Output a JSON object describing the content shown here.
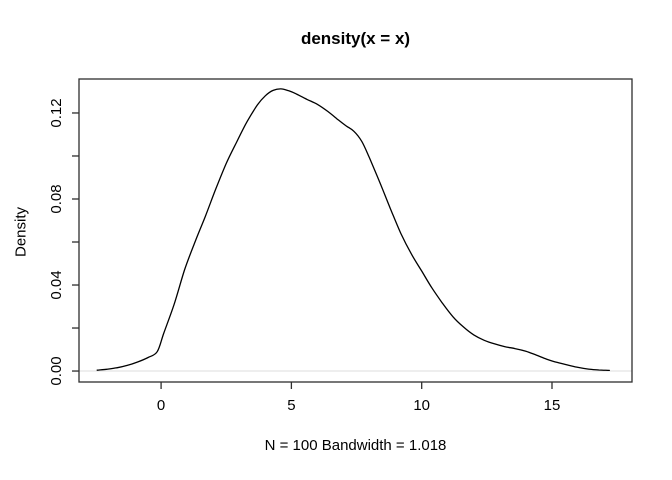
{
  "title": "density(x = x)",
  "chart_data": {
    "type": "line",
    "title": "density(x = x)",
    "xlabel": "N = 100   Bandwidth = 1.018",
    "ylabel": "Density",
    "n": 100,
    "bandwidth": 1.018,
    "xlim": [
      -3.15,
      18.07
    ],
    "ylim": [
      -0.0051,
      0.1358
    ],
    "grid": false,
    "legend": false,
    "x_ticks": {
      "values": [
        0,
        5,
        10,
        15
      ],
      "labels": [
        "0",
        "5",
        "10",
        "15"
      ]
    },
    "y_ticks": {
      "values": [
        0.0,
        0.02,
        0.04,
        0.06,
        0.08,
        0.1,
        0.12
      ],
      "labels": [
        "0.00",
        "",
        "0.04",
        "",
        "0.08",
        "",
        "0.12"
      ]
    },
    "zero_line": {
      "value": 0,
      "color": "#e8e8e8"
    },
    "series": [
      {
        "name": "density",
        "color": "#000000",
        "points": [
          [
            -2.45,
            0.0004
          ],
          [
            -2.1,
            0.0008
          ],
          [
            -1.7,
            0.0015
          ],
          [
            -1.3,
            0.0026
          ],
          [
            -0.9,
            0.0042
          ],
          [
            -0.5,
            0.0063
          ],
          [
            -0.15,
            0.009
          ],
          [
            0.1,
            0.0175
          ],
          [
            0.5,
            0.031
          ],
          [
            0.9,
            0.047
          ],
          [
            1.3,
            0.06
          ],
          [
            1.7,
            0.072
          ],
          [
            2.1,
            0.0847
          ],
          [
            2.5,
            0.0965
          ],
          [
            2.9,
            0.1065
          ],
          [
            3.3,
            0.116
          ],
          [
            3.7,
            0.1238
          ],
          [
            4.0,
            0.128
          ],
          [
            4.3,
            0.1305
          ],
          [
            4.6,
            0.1312
          ],
          [
            4.9,
            0.1303
          ],
          [
            5.2,
            0.1288
          ],
          [
            5.6,
            0.1263
          ],
          [
            6.0,
            0.124
          ],
          [
            6.4,
            0.1207
          ],
          [
            6.8,
            0.1168
          ],
          [
            7.1,
            0.114
          ],
          [
            7.4,
            0.1115
          ],
          [
            7.7,
            0.1068
          ],
          [
            8.0,
            0.099
          ],
          [
            8.4,
            0.0875
          ],
          [
            8.8,
            0.0755
          ],
          [
            9.2,
            0.064
          ],
          [
            9.6,
            0.0545
          ],
          [
            10.0,
            0.0465
          ],
          [
            10.4,
            0.0385
          ],
          [
            10.8,
            0.0315
          ],
          [
            11.2,
            0.0252
          ],
          [
            11.6,
            0.0205
          ],
          [
            12.0,
            0.0168
          ],
          [
            12.4,
            0.0143
          ],
          [
            12.8,
            0.0126
          ],
          [
            13.2,
            0.0113
          ],
          [
            13.6,
            0.0104
          ],
          [
            14.0,
            0.0092
          ],
          [
            14.4,
            0.0074
          ],
          [
            14.8,
            0.0055
          ],
          [
            15.2,
            0.004
          ],
          [
            15.6,
            0.0028
          ],
          [
            16.0,
            0.0017
          ],
          [
            16.4,
            0.0009
          ],
          [
            16.8,
            0.0005
          ],
          [
            17.2,
            0.0003
          ]
        ]
      }
    ],
    "colors": {
      "curve": "#000000",
      "axis": "#2e2e2e",
      "text": "#000000",
      "background": "#ffffff"
    }
  }
}
